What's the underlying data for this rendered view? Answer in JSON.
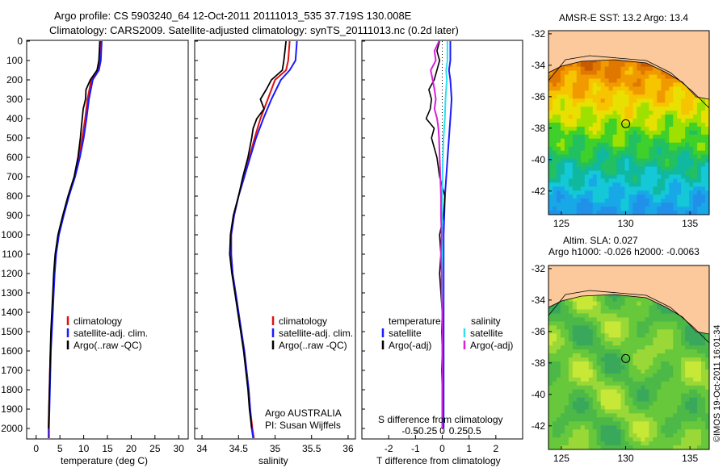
{
  "header": {
    "line1": "Argo profile: CS 5903240_64 12-Oct-2011 20111013_535 37.719S 130.008E",
    "line2": "Climatology: CARS2009. Satellite-adjusted climatology: synTS_20111013.nc (0.2d later)"
  },
  "colors": {
    "climatology": "#e01010",
    "satellite": "#1a1aff",
    "argo": "#000000",
    "sat_sal": "#2ee0f0",
    "argo_sal": "#d822d8",
    "land": "#fbc99b"
  },
  "depth_axis": {
    "min": 0,
    "max": 2050,
    "ticks": [
      0,
      100,
      200,
      300,
      400,
      500,
      600,
      700,
      800,
      900,
      1000,
      1100,
      1200,
      1300,
      1400,
      1500,
      1600,
      1700,
      1800,
      1900,
      2000
    ]
  },
  "chart_data": [
    {
      "type": "line",
      "id": "temperature",
      "xlabel": "temperature (deg C)",
      "xlim": [
        -2,
        32
      ],
      "xticks": [
        0,
        5,
        10,
        15,
        20,
        25,
        30
      ],
      "legend": [
        "climatology",
        "satellite-adj. clim.",
        "Argo(..raw -QC)"
      ],
      "series": [
        {
          "name": "climatology",
          "depth": [
            0,
            100,
            150,
            200,
            300,
            400,
            500,
            600,
            700,
            800,
            900,
            1000,
            1100,
            1200,
            1300,
            1400,
            1500,
            1600,
            1700,
            1800,
            1900,
            2000,
            2050
          ],
          "values": [
            13.5,
            13.3,
            13,
            11.6,
            10.8,
            10.3,
            9.7,
            9,
            8.1,
            6.8,
            5.7,
            4.7,
            4.1,
            3.8,
            3.6,
            3.4,
            3.2,
            3.0,
            2.9,
            2.8,
            2.7,
            2.6,
            2.6
          ]
        },
        {
          "name": "satellite",
          "depth": [
            0,
            100,
            150,
            200,
            300,
            400,
            500,
            600,
            700,
            800,
            900,
            1000,
            1100,
            1200,
            1300,
            1400,
            1500,
            1600,
            1700,
            1800,
            1900,
            2000,
            2050
          ],
          "values": [
            13.8,
            13.6,
            13.2,
            11.9,
            11.1,
            10.6,
            10,
            9.2,
            8.2,
            6.9,
            5.8,
            4.8,
            4.2,
            3.9,
            3.7,
            3.5,
            3.3,
            3.1,
            3.0,
            2.9,
            2.8,
            2.7,
            2.7
          ]
        },
        {
          "name": "argo",
          "depth": [
            0,
            100,
            150,
            200,
            250,
            300,
            350,
            400,
            450,
            500,
            600,
            700,
            800,
            900,
            1000,
            1100,
            1200,
            1300,
            1400,
            1500,
            1600,
            1700,
            1800,
            1900,
            2000
          ],
          "values": [
            13.4,
            13.2,
            12.8,
            11.4,
            10.5,
            10.4,
            9.9,
            9.7,
            9.5,
            9.3,
            8.8,
            8,
            6.7,
            5.6,
            4.6,
            4.0,
            3.7,
            3.5,
            3.3,
            3.1,
            3.0,
            2.9,
            2.8,
            2.7,
            2.6
          ]
        }
      ]
    },
    {
      "type": "line",
      "id": "salinity",
      "xlabel": "salinity",
      "xlim": [
        33.9,
        36.1
      ],
      "xticks": [
        34,
        34.5,
        35,
        35.5,
        36
      ],
      "legend": [
        "climatology",
        "satellite-adj. clim.",
        "Argo(..raw -QC)"
      ],
      "series": [
        {
          "name": "climatology",
          "depth": [
            0,
            100,
            150,
            200,
            300,
            400,
            500,
            600,
            700,
            800,
            900,
            1000,
            1100,
            1200,
            1300,
            1400,
            1500,
            1600,
            1700,
            1800,
            1900,
            2000,
            2050
          ],
          "values": [
            35.2,
            35.18,
            35.15,
            35.0,
            34.9,
            34.8,
            34.72,
            34.65,
            34.58,
            34.5,
            34.44,
            34.4,
            34.4,
            34.42,
            34.46,
            34.5,
            34.54,
            34.58,
            34.61,
            34.64,
            34.66,
            34.69,
            34.71
          ]
        },
        {
          "name": "satellite",
          "depth": [
            0,
            100,
            150,
            200,
            300,
            400,
            500,
            600,
            700,
            800,
            900,
            1000,
            1100,
            1200,
            1300,
            1400,
            1500,
            1600,
            1700,
            1800,
            1900,
            2000,
            2050
          ],
          "values": [
            35.3,
            35.28,
            35.2,
            35.08,
            34.95,
            34.84,
            34.74,
            34.66,
            34.58,
            34.5,
            34.44,
            34.4,
            34.4,
            34.42,
            34.46,
            34.5,
            34.54,
            34.58,
            34.61,
            34.64,
            34.66,
            34.68,
            34.7
          ]
        },
        {
          "name": "argo",
          "depth": [
            0,
            100,
            150,
            200,
            250,
            300,
            350,
            400,
            450,
            500,
            600,
            700,
            800,
            900,
            1000,
            1100,
            1200,
            1300,
            1400,
            1500,
            1600,
            1700,
            1800,
            1900,
            2000
          ],
          "values": [
            35.15,
            35.12,
            35.1,
            34.95,
            34.88,
            34.8,
            34.85,
            34.75,
            34.7,
            34.68,
            34.63,
            34.56,
            34.5,
            34.43,
            34.39,
            34.38,
            34.41,
            34.45,
            34.49,
            34.53,
            34.57,
            34.6,
            34.63,
            34.65,
            34.68
          ]
        }
      ],
      "annotation": [
        "Argo AUSTRALIA",
        "PI: Susan Wijffels"
      ]
    },
    {
      "type": "line",
      "id": "differences",
      "xlabel": "T difference from climatology",
      "xlim": [
        -3,
        3
      ],
      "xticks": [
        -2,
        -1,
        0,
        1,
        2
      ],
      "top_label": "S difference from climatology",
      "top_ticks": [
        "-0.5",
        "-0.25",
        "0",
        "0.25",
        "0.5"
      ],
      "legend_titles": [
        "temperature",
        "salinity"
      ],
      "legend": [
        "satellite",
        "Argo(-adj)",
        "satellite",
        "Argo(-adj)"
      ],
      "series": [
        {
          "name": "T satellite",
          "depth": [
            0,
            100,
            150,
            200,
            300,
            400,
            500,
            600,
            800,
            1000,
            1200,
            1500,
            1800,
            2000
          ],
          "values": [
            0.3,
            0.3,
            0.25,
            0.3,
            0.35,
            0.3,
            0.25,
            0.2,
            0.1,
            0.05,
            0.05,
            0.05,
            0.05,
            0.05
          ]
        },
        {
          "name": "T Argo(-adj)",
          "depth": [
            0,
            50,
            100,
            150,
            200,
            250,
            300,
            350,
            400,
            450,
            500,
            600,
            700,
            800,
            900,
            1000,
            1100,
            1200,
            1300,
            1400,
            1500,
            1600,
            1700,
            1800,
            1900,
            2000
          ],
          "values": [
            -0.1,
            -0.2,
            -0.1,
            -0.2,
            -0.3,
            -0.5,
            -0.4,
            -0.45,
            -0.6,
            -0.3,
            -0.4,
            -0.2,
            -0.1,
            0.1,
            0.05,
            -0.1,
            -0.05,
            -0.1,
            -0.05,
            0,
            -0.02,
            0,
            -0.02,
            0,
            0,
            0
          ]
        },
        {
          "name": "S satellite",
          "depth": [
            0,
            100,
            150,
            200,
            300,
            400,
            500,
            600,
            800,
            1000,
            1200,
            1500,
            1800,
            2000
          ],
          "values": [
            0.08,
            0.08,
            0.06,
            0.07,
            0.05,
            0.04,
            0.02,
            0.01,
            0,
            0,
            0,
            0,
            0,
            0
          ]
        },
        {
          "name": "S Argo(-adj)",
          "depth": [
            0,
            50,
            100,
            150,
            200,
            250,
            300,
            350,
            400,
            450,
            500,
            600,
            700,
            800,
            900,
            1000,
            1100,
            1200,
            1300,
            1400,
            1500,
            1600,
            1700,
            1800,
            1900,
            2000
          ],
          "values": [
            -0.05,
            -0.12,
            -0.1,
            -0.18,
            -0.15,
            -0.12,
            -0.1,
            -0.12,
            -0.08,
            -0.06,
            -0.05,
            -0.04,
            -0.03,
            -0.02,
            -0.02,
            -0.01,
            -0.02,
            -0.01,
            -0.01,
            0,
            0,
            0,
            0,
            0,
            0,
            0
          ]
        }
      ]
    },
    {
      "type": "heatmap",
      "id": "sst_map",
      "title": "AMSR-E SST: 13.2 Argo: 13.4",
      "xlim": [
        124,
        136.5
      ],
      "ylim": [
        -43.5,
        -31.8
      ],
      "xticks": [
        125,
        130,
        135
      ],
      "yticks": [
        -32,
        -34,
        -36,
        -38,
        -40,
        -42
      ],
      "float": {
        "lon": 130.008,
        "lat": -37.719
      }
    },
    {
      "type": "heatmap",
      "id": "sla_map",
      "title": "Altim. SLA: 0.027",
      "subtitle": "Argo h1000: -0.026 h2000: -0.0063",
      "xlim": [
        124,
        136.5
      ],
      "ylim": [
        -43.5,
        -31.8
      ],
      "xticks": [
        125,
        130,
        135
      ],
      "yticks": [
        -32,
        -34,
        -36,
        -38,
        -40,
        -42
      ],
      "float": {
        "lon": 130.008,
        "lat": -37.719
      }
    }
  ],
  "credit": "©IMOS 19-Oct-2011 16:01:34"
}
